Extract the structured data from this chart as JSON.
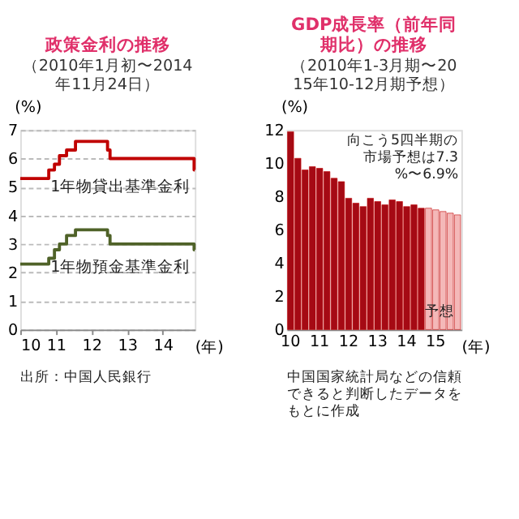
{
  "chart_data": [
    {
      "type": "step",
      "title": "政策金利の推移",
      "subtitle": "（2010年1月初〜2014年11月24日）",
      "xlabel": "(年)",
      "ylabel": "(%)",
      "series": [
        {
          "name": "1年物貸出基準金利",
          "color": "#c00000",
          "x": [
            10.0,
            10.8,
            10.96,
            11.1,
            11.3,
            11.55,
            12.45,
            12.52,
            14.88,
            14.9
          ],
          "values": [
            5.3,
            5.6,
            5.8,
            6.1,
            6.3,
            6.6,
            6.3,
            6.0,
            5.6,
            5.6
          ]
        },
        {
          "name": "1年物預金基準金利",
          "color": "#4f6228",
          "x": [
            10.0,
            10.8,
            10.96,
            11.1,
            11.3,
            11.55,
            12.45,
            12.52,
            14.88,
            14.9
          ],
          "values": [
            2.3,
            2.5,
            2.8,
            3.0,
            3.3,
            3.5,
            3.3,
            3.0,
            2.8,
            2.8
          ]
        }
      ],
      "xlim": [
        10,
        14.9
      ],
      "xticks": [
        10,
        11,
        12,
        13,
        14
      ],
      "ylim": [
        0,
        7
      ],
      "yticks": [
        0,
        1,
        2,
        3,
        4,
        5,
        6,
        7
      ],
      "grid": "y",
      "legend": false,
      "annotations": [
        "出所：中国人民銀行"
      ]
    },
    {
      "type": "bar",
      "title": "GDP成長率（前年同期比）の推移",
      "subtitle": "（2010年1-3月期〜2015年10-12月期予想）",
      "xlabel": "(年)",
      "ylabel": "(%)",
      "categories": [
        "10",
        null,
        null,
        null,
        "11",
        null,
        null,
        null,
        "12",
        null,
        null,
        null,
        "13",
        null,
        null,
        null,
        "14",
        null,
        null,
        null,
        "15",
        null,
        null,
        null
      ],
      "values": [
        11.9,
        10.3,
        9.6,
        9.8,
        9.7,
        9.5,
        9.1,
        8.9,
        7.9,
        7.6,
        7.4,
        7.9,
        7.7,
        7.5,
        7.8,
        7.7,
        7.4,
        7.5,
        7.3,
        7.3,
        7.2,
        7.1,
        7.0,
        6.9
      ],
      "colors": [
        "#a50a14",
        "#a50a14",
        "#a50a14",
        "#a50a14",
        "#a50a14",
        "#a50a14",
        "#a50a14",
        "#a50a14",
        "#a50a14",
        "#a50a14",
        "#a50a14",
        "#a50a14",
        "#a50a14",
        "#a50a14",
        "#a50a14",
        "#a50a14",
        "#a50a14",
        "#a50a14",
        "#a50a14",
        "#f4b8b8",
        "#f4b8b8",
        "#f4b8b8",
        "#f4b8b8",
        "#f4b8b8"
      ],
      "ylim": [
        0,
        12
      ],
      "yticks": [
        0,
        2,
        4,
        6,
        8,
        10,
        12
      ],
      "grid": false,
      "legend": false,
      "annotations": [
        "向こう5四半期の市場予想は7.3%〜6.9%",
        "予想",
        "中国国家統計局などの信頼できると判断したデータをもとに作成"
      ]
    }
  ]
}
